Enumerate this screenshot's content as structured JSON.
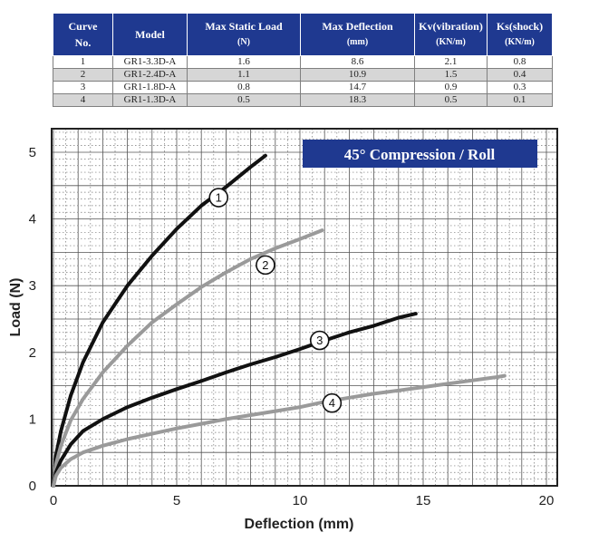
{
  "table": {
    "headers": [
      {
        "line1": "Curve",
        "line2": "No."
      },
      {
        "line1": "Model",
        "line2": ""
      },
      {
        "line1": "Max Static Load",
        "line2": "(N)"
      },
      {
        "line1": "Max Deflection",
        "line2": "(mm)"
      },
      {
        "line1": "Kv(vibration)",
        "line2": "(KN/m)"
      },
      {
        "line1": "Ks(shock)",
        "line2": "(KN/m)"
      }
    ],
    "rows": [
      [
        "1",
        "GR1-3.3D-A",
        "1.6",
        "8.6",
        "2.1",
        "0.8"
      ],
      [
        "2",
        "GR1-2.4D-A",
        "1.1",
        "10.9",
        "1.5",
        "0.4"
      ],
      [
        "3",
        "GR1-1.8D-A",
        "0.8",
        "14.7",
        "0.9",
        "0.3"
      ],
      [
        "4",
        "GR1-1.3D-A",
        "0.5",
        "18.3",
        "0.5",
        "0.1"
      ]
    ]
  },
  "chart_data": {
    "type": "line",
    "title": "45° Compression / Roll",
    "xlabel": "Deflection (mm)",
    "ylabel": "Load (N)",
    "xlim": [
      0,
      20
    ],
    "ylim": [
      0,
      5
    ],
    "xticks": [
      "0",
      "5",
      "10",
      "15",
      "20"
    ],
    "yticks": [
      "0",
      "1",
      "2",
      "3",
      "4",
      "5"
    ],
    "grid": true,
    "series": [
      {
        "name": "1",
        "color": "#111111",
        "x": [
          0,
          0.1,
          0.3,
          0.7,
          1.2,
          2,
          3,
          4,
          5,
          6,
          7,
          8,
          8.6
        ],
        "y": [
          0,
          0.45,
          0.82,
          1.35,
          1.85,
          2.45,
          3.0,
          3.45,
          3.85,
          4.2,
          4.48,
          4.78,
          4.95
        ]
      },
      {
        "name": "2",
        "color": "#9a9a9a",
        "x": [
          0,
          0.1,
          0.3,
          0.7,
          1.2,
          2,
          3,
          4,
          5,
          6,
          7,
          8,
          9,
          10,
          10.9
        ],
        "y": [
          0,
          0.32,
          0.6,
          0.98,
          1.3,
          1.7,
          2.1,
          2.45,
          2.72,
          2.98,
          3.2,
          3.4,
          3.56,
          3.7,
          3.83
        ]
      },
      {
        "name": "3",
        "color": "#111111",
        "x": [
          0,
          0.1,
          0.3,
          0.7,
          1.2,
          2,
          3,
          4,
          5,
          6,
          7,
          8,
          9,
          10,
          11,
          12,
          13,
          14,
          14.7
        ],
        "y": [
          0,
          0.2,
          0.38,
          0.62,
          0.82,
          1.0,
          1.18,
          1.32,
          1.45,
          1.57,
          1.7,
          1.82,
          1.93,
          2.05,
          2.18,
          2.3,
          2.4,
          2.52,
          2.58
        ]
      },
      {
        "name": "4",
        "color": "#9a9a9a",
        "x": [
          0,
          0.1,
          0.3,
          0.7,
          1.2,
          2,
          3,
          4,
          5,
          6,
          7,
          8,
          9,
          10,
          11,
          12,
          13,
          14,
          15,
          16,
          17,
          18,
          18.3
        ],
        "y": [
          0,
          0.15,
          0.27,
          0.4,
          0.5,
          0.6,
          0.7,
          0.78,
          0.86,
          0.93,
          1.0,
          1.06,
          1.12,
          1.18,
          1.26,
          1.32,
          1.38,
          1.43,
          1.48,
          1.53,
          1.58,
          1.63,
          1.65
        ]
      }
    ],
    "markers": [
      {
        "label": "1",
        "x": 6.7,
        "y": 4.32
      },
      {
        "label": "2",
        "x": 8.6,
        "y": 3.31
      },
      {
        "label": "3",
        "x": 10.8,
        "y": 2.18
      },
      {
        "label": "4",
        "x": 11.3,
        "y": 1.24
      }
    ]
  }
}
